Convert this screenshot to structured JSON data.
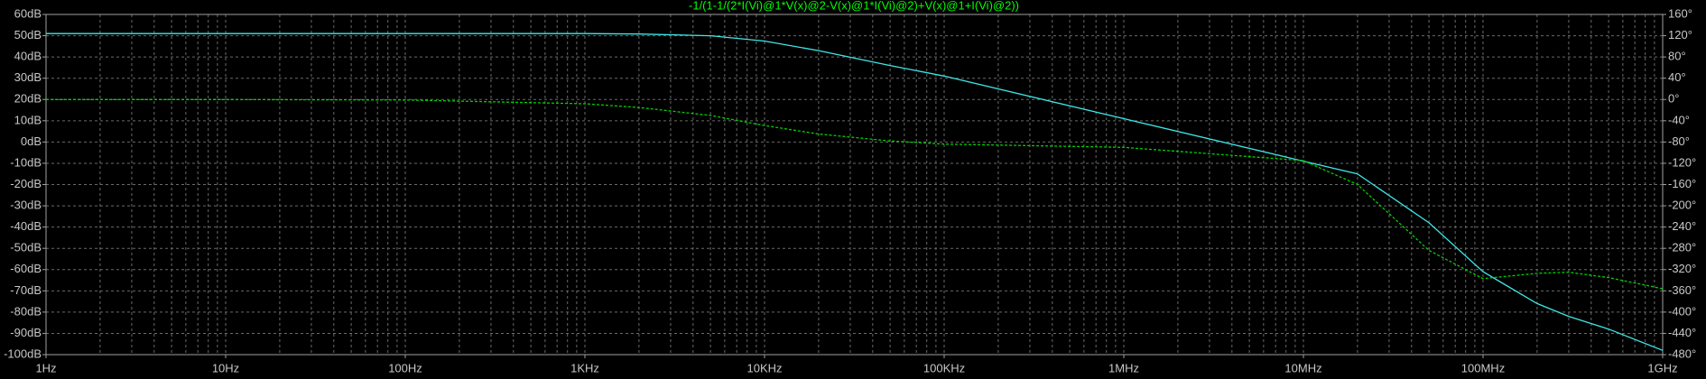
{
  "chart_data": {
    "type": "line",
    "title": "-1/(1-1/(2*I(Vi)@1*V(x)@2-V(x)@1*I(Vi)@2)+V(x)@1+I(Vi)@2))",
    "log_x": true,
    "grid": true,
    "x": [
      1,
      10,
      100,
      1000,
      2000,
      5000,
      10000,
      20000,
      50000,
      100000,
      1000000,
      10000000,
      20000000,
      50000000,
      100000000,
      200000000,
      300000000,
      500000000,
      1000000000
    ],
    "series": [
      {
        "name": "magnitude",
        "color": "#3fe6e6",
        "dashed": false,
        "axis": "y",
        "values": [
          51,
          51,
          51,
          51,
          50.8,
          50,
          47.5,
          43,
          36,
          31,
          11,
          -9,
          -15,
          -38,
          -61,
          -76,
          -82,
          -88,
          -98
        ]
      },
      {
        "name": "phase",
        "color": "#00d000",
        "dashed": true,
        "axis": "y2",
        "values": [
          0,
          0,
          -1,
          -8,
          -15,
          -30,
          -49,
          -65,
          -78,
          -84,
          -90,
          -115,
          -160,
          -284,
          -337,
          -327,
          -325,
          -335,
          -356
        ]
      }
    ],
    "xlim": [
      1,
      1000000000
    ],
    "xticks": [
      {
        "value": 1,
        "label": "1Hz"
      },
      {
        "value": 10,
        "label": "10Hz"
      },
      {
        "value": 100,
        "label": "100Hz"
      },
      {
        "value": 1000,
        "label": "1KHz"
      },
      {
        "value": 10000,
        "label": "10KHz"
      },
      {
        "value": 100000,
        "label": "100KHz"
      },
      {
        "value": 1000000,
        "label": "1MHz"
      },
      {
        "value": 10000000,
        "label": "10MHz"
      },
      {
        "value": 100000000,
        "label": "100MHz"
      },
      {
        "value": 1000000000,
        "label": "1GHz"
      }
    ],
    "ylim": [
      -100,
      60
    ],
    "yticks": [
      {
        "value": 60,
        "label": "60dB"
      },
      {
        "value": 50,
        "label": "50dB"
      },
      {
        "value": 40,
        "label": "40dB"
      },
      {
        "value": 30,
        "label": "30dB"
      },
      {
        "value": 20,
        "label": "20dB"
      },
      {
        "value": 10,
        "label": "10dB"
      },
      {
        "value": 0,
        "label": "0dB"
      },
      {
        "value": -10,
        "label": "-10dB"
      },
      {
        "value": -20,
        "label": "-20dB"
      },
      {
        "value": -30,
        "label": "-30dB"
      },
      {
        "value": -40,
        "label": "-40dB"
      },
      {
        "value": -50,
        "label": "-50dB"
      },
      {
        "value": -60,
        "label": "-60dB"
      },
      {
        "value": -70,
        "label": "-70dB"
      },
      {
        "value": -80,
        "label": "-80dB"
      },
      {
        "value": -90,
        "label": "-90dB"
      },
      {
        "value": -100,
        "label": "-100dB"
      }
    ],
    "y2lim": [
      -480,
      160
    ],
    "y2ticks": [
      {
        "value": 160,
        "label": "160°"
      },
      {
        "value": 120,
        "label": "120°"
      },
      {
        "value": 80,
        "label": "80°"
      },
      {
        "value": 40,
        "label": "40°"
      },
      {
        "value": 0,
        "label": "0°"
      },
      {
        "value": -40,
        "label": "-40°"
      },
      {
        "value": -80,
        "label": "-80°"
      },
      {
        "value": -120,
        "label": "-120°"
      },
      {
        "value": -160,
        "label": "-160°"
      },
      {
        "value": -200,
        "label": "-200°"
      },
      {
        "value": -240,
        "label": "-240°"
      },
      {
        "value": -280,
        "label": "-280°"
      },
      {
        "value": -320,
        "label": "-320°"
      },
      {
        "value": -360,
        "label": "-360°"
      },
      {
        "value": -400,
        "label": "-400°"
      },
      {
        "value": -440,
        "label": "-440°"
      },
      {
        "value": -480,
        "label": "-480°"
      }
    ]
  }
}
